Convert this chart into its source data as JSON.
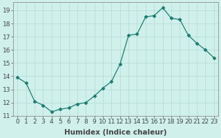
{
  "x": [
    0,
    1,
    2,
    3,
    4,
    5,
    6,
    7,
    8,
    9,
    10,
    11,
    12,
    13,
    14,
    15,
    16,
    17,
    18,
    19,
    20,
    21,
    22,
    23
  ],
  "y": [
    13.9,
    13.5,
    12.1,
    11.8,
    11.3,
    11.5,
    11.6,
    11.9,
    12.0,
    12.5,
    13.1,
    13.6,
    14.9,
    17.1,
    17.2,
    18.5,
    18.6,
    19.2,
    18.4,
    18.3,
    17.1,
    16.5,
    16.0,
    15.4
  ],
  "line_color": "#1a7a6e",
  "marker": "D",
  "marker_size": 2.5,
  "bg_color": "#cff0eb",
  "grid_color": "#b8ddd8",
  "xlabel": "Humidex (Indice chaleur)",
  "ylabel": "",
  "ylim": [
    11,
    19.6
  ],
  "xlim": [
    -0.5,
    23.5
  ],
  "yticks": [
    11,
    12,
    13,
    14,
    15,
    16,
    17,
    18,
    19
  ],
  "xticks": [
    0,
    1,
    2,
    3,
    4,
    5,
    6,
    7,
    8,
    9,
    10,
    11,
    12,
    13,
    14,
    15,
    16,
    17,
    18,
    19,
    20,
    21,
    22,
    23
  ],
  "xtick_labels": [
    "0",
    "1",
    "2",
    "3",
    "4",
    "5",
    "6",
    "7",
    "8",
    "9",
    "10",
    "11",
    "12",
    "13",
    "14",
    "15",
    "16",
    "17",
    "18",
    "19",
    "20",
    "21",
    "22",
    "23"
  ],
  "tick_color": "#444444",
  "fontsize_axis": 7.5,
  "fontsize_ticks": 6.5
}
